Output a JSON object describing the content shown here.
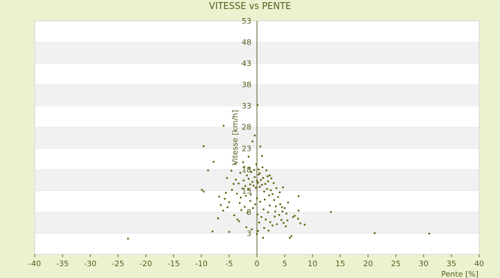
{
  "chart_data": {
    "type": "scatter",
    "title": "VITESSE vs PENTE",
    "xlabel": "Pente [%]",
    "ylabel": "Vitesse [km/h]",
    "xlim": [
      -40,
      40
    ],
    "ylim": [
      -2,
      53
    ],
    "x_ticks": [
      -40,
      -35,
      -30,
      -25,
      -20,
      -15,
      -10,
      -5,
      0,
      5,
      10,
      15,
      20,
      25,
      30,
      35,
      40
    ],
    "y_ticks": [
      3,
      8,
      13,
      18,
      23,
      28,
      33,
      38,
      43,
      48,
      53
    ],
    "grid": true,
    "colors": {
      "background": "#ebf2cf",
      "plot_band_light": "#ffffff",
      "plot_band_dark": "#f1f1f1",
      "axis": "#5a5a1e",
      "point": "#5a5a00"
    },
    "series": [
      {
        "values": [
          [
            -23.2,
            1.7
          ],
          [
            -9.6,
            23.5
          ],
          [
            -8.8,
            17.8
          ],
          [
            -7.8,
            19.8
          ],
          [
            -6.8,
            11.6
          ],
          [
            -6.0,
            28.3
          ],
          [
            -5.6,
            12.5
          ],
          [
            -5.4,
            16.0
          ],
          [
            -5.0,
            10.3
          ],
          [
            -4.5,
            13.2
          ],
          [
            -4.2,
            14.6
          ],
          [
            -3.8,
            15.6
          ],
          [
            -3.6,
            12.3
          ],
          [
            -3.3,
            14.7
          ],
          [
            -3.0,
            17.2
          ],
          [
            -2.9,
            11.4
          ],
          [
            -2.6,
            13.5
          ],
          [
            -2.4,
            15.4
          ],
          [
            -2.1,
            14.1
          ],
          [
            -1.8,
            16.6
          ],
          [
            -1.6,
            13.3
          ],
          [
            -1.5,
            15.8
          ],
          [
            -1.2,
            14.5
          ],
          [
            -1.0,
            17.4
          ],
          [
            -0.8,
            15.1
          ],
          [
            -0.6,
            14.2
          ],
          [
            -0.4,
            16.2
          ],
          [
            -0.2,
            13.7
          ],
          [
            0.0,
            15.3
          ],
          [
            0.2,
            14.9
          ],
          [
            0.3,
            16.8
          ],
          [
            0.5,
            13.9
          ],
          [
            0.7,
            15.5
          ],
          [
            0.9,
            14.4
          ],
          [
            1.1,
            16.0
          ],
          [
            1.3,
            12.8
          ],
          [
            1.5,
            14.6
          ],
          [
            1.8,
            13.4
          ],
          [
            2.0,
            15.2
          ],
          [
            2.2,
            11.9
          ],
          [
            2.5,
            13.1
          ],
          [
            2.8,
            12.2
          ],
          [
            3.1,
            10.8
          ],
          [
            3.4,
            9.3
          ],
          [
            3.8,
            11.5
          ],
          [
            4.2,
            9.8
          ],
          [
            4.6,
            8.1
          ],
          [
            5.0,
            8.9
          ],
          [
            5.3,
            7.6
          ],
          [
            5.6,
            10.2
          ],
          [
            -9.9,
            13.2
          ],
          [
            -9.6,
            12.8
          ],
          [
            -8.0,
            3.4
          ],
          [
            -5.0,
            3.3
          ],
          [
            -3.5,
            6.2
          ],
          [
            -2.8,
            8.4
          ],
          [
            -2.2,
            9.2
          ],
          [
            -1.7,
            7.8
          ],
          [
            -1.2,
            10.6
          ],
          [
            -0.7,
            8.9
          ],
          [
            -0.3,
            9.8
          ],
          [
            0.1,
            7.4
          ],
          [
            0.4,
            5.5
          ],
          [
            0.8,
            6.8
          ],
          [
            1.2,
            8.6
          ],
          [
            1.6,
            6.2
          ],
          [
            2.0,
            7.9
          ],
          [
            2.4,
            5.6
          ],
          [
            2.8,
            4.8
          ],
          [
            3.2,
            6.9
          ],
          [
            3.6,
            5.1
          ],
          [
            4.0,
            7.3
          ],
          [
            4.4,
            6.1
          ],
          [
            4.8,
            5.4
          ],
          [
            5.2,
            4.6
          ],
          [
            5.9,
            1.9
          ],
          [
            6.2,
            2.3
          ],
          [
            6.8,
            7.1
          ],
          [
            7.4,
            6.4
          ],
          [
            7.5,
            8.3
          ],
          [
            7.8,
            5.3
          ],
          [
            8.6,
            5.0
          ],
          [
            7.5,
            11.7
          ],
          [
            13.3,
            8.0
          ],
          [
            21.2,
            3.0
          ],
          [
            31.0,
            2.9
          ],
          [
            0.1,
            33.2
          ],
          [
            -0.4,
            26.0
          ],
          [
            -0.8,
            24.6
          ],
          [
            0.6,
            23.4
          ],
          [
            0.9,
            21.2
          ],
          [
            -1.5,
            21.0
          ],
          [
            -2.3,
            18.6
          ],
          [
            -0.1,
            19.2
          ],
          [
            0.3,
            18.0
          ],
          [
            1.7,
            17.8
          ],
          [
            2.3,
            16.6
          ],
          [
            2.6,
            15.9
          ],
          [
            -3.9,
            19.3
          ],
          [
            -4.6,
            17.7
          ],
          [
            -5.3,
            9.1
          ],
          [
            -6.1,
            8.3
          ],
          [
            -4.1,
            7.2
          ],
          [
            -3.2,
            5.8
          ],
          [
            -1.9,
            4.4
          ],
          [
            -0.9,
            3.9
          ],
          [
            0.2,
            3.5
          ],
          [
            1.3,
            4.2
          ],
          [
            2.1,
            3.6
          ],
          [
            -2.5,
            19.7
          ],
          [
            -1.4,
            18.4
          ],
          [
            -0.5,
            17.9
          ],
          [
            0.5,
            17.1
          ],
          [
            1.0,
            18.5
          ],
          [
            1.9,
            16.4
          ],
          [
            3.0,
            14.8
          ],
          [
            3.5,
            13.6
          ],
          [
            4.1,
            12.6
          ],
          [
            4.7,
            13.8
          ],
          [
            -7.0,
            6.5
          ],
          [
            -6.5,
            9.6
          ],
          [
            -5.8,
            11.1
          ],
          [
            -3.1,
            10.1
          ],
          [
            -2.0,
            11.8
          ],
          [
            -1.1,
            12.1
          ],
          [
            0.0,
            11.2
          ],
          [
            0.6,
            10.4
          ],
          [
            1.4,
            10.9
          ],
          [
            2.3,
            9.5
          ],
          [
            3.3,
            8.1
          ],
          [
            4.5,
            9.1
          ],
          [
            5.5,
            6.0
          ],
          [
            6.5,
            6.8
          ],
          [
            1.1,
            1.9
          ],
          [
            0.0,
            2.8
          ]
        ]
      }
    ]
  }
}
